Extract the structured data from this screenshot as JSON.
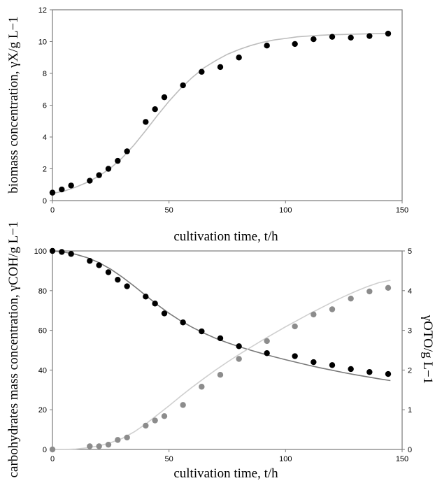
{
  "chart_data": [
    {
      "type": "scatter",
      "title": "",
      "xlabel": "cultivation time, t/h",
      "ylabel": "biomass concentration, γX/g L−1",
      "xlim": [
        0,
        150
      ],
      "ylim": [
        0,
        12
      ],
      "xticks": [
        "0",
        "50",
        "100",
        "150"
      ],
      "yticks": [
        "0",
        "2",
        "4",
        "6",
        "8",
        "10",
        "12"
      ],
      "grid": false,
      "series": [
        {
          "x": [
            0,
            4,
            8,
            16,
            20,
            24,
            28,
            32,
            40,
            44,
            48,
            56,
            64,
            72,
            80,
            92,
            104,
            112,
            120,
            128,
            136,
            144
          ],
          "values": [
            0.5,
            0.7,
            0.95,
            1.25,
            1.6,
            2.0,
            2.5,
            3.1,
            4.95,
            5.75,
            6.5,
            7.25,
            8.1,
            8.4,
            9.0,
            9.75,
            9.85,
            10.15,
            10.3,
            10.25,
            10.35,
            10.5
          ],
          "color": "#000000"
        }
      ],
      "fit_curves": [
        {
          "x": [
            0,
            5,
            10,
            15,
            20,
            25,
            30,
            35,
            40,
            45,
            50,
            55,
            60,
            65,
            70,
            75,
            80,
            85,
            90,
            95,
            100,
            105,
            110,
            115,
            120,
            125,
            130,
            135,
            140,
            145
          ],
          "values": [
            0.45,
            0.6,
            0.85,
            1.15,
            1.55,
            2.05,
            2.7,
            3.5,
            4.4,
            5.35,
            6.25,
            7.05,
            7.75,
            8.35,
            8.8,
            9.2,
            9.5,
            9.75,
            9.95,
            10.1,
            10.2,
            10.3,
            10.35,
            10.4,
            10.43,
            10.45,
            10.47,
            10.49,
            10.5,
            10.52
          ],
          "color": "#bdbdbd"
        }
      ]
    },
    {
      "type": "scatter",
      "title": "",
      "xlabel": "cultivation time, t/h",
      "ylabel": "carbohydrates mass concentration, γCOH/g L−1",
      "y2label": "γOTO/g L−1",
      "xlim": [
        0,
        150
      ],
      "ylim": [
        0,
        100
      ],
      "y2lim": [
        0,
        5
      ],
      "xticks": [
        "0",
        "50",
        "100",
        "150"
      ],
      "yticks": [
        "0",
        "20",
        "40",
        "60",
        "80",
        "100"
      ],
      "y2ticks": [
        "0",
        "1",
        "2",
        "3",
        "4",
        "5"
      ],
      "grid": false,
      "series": [
        {
          "axis": "left",
          "x": [
            0,
            4,
            8,
            16,
            20,
            24,
            28,
            32,
            40,
            44,
            48,
            56,
            64,
            72,
            80,
            92,
            104,
            112,
            120,
            128,
            136,
            144
          ],
          "values": [
            100,
            99.5,
            98.5,
            95,
            92.8,
            89.3,
            85.5,
            82.2,
            77,
            73.5,
            68.5,
            64,
            59.5,
            56,
            52,
            48.5,
            47,
            44,
            42.5,
            40.5,
            39,
            38
          ],
          "color": "#000000"
        },
        {
          "axis": "right",
          "x": [
            0,
            16,
            20,
            24,
            28,
            32,
            40,
            44,
            48,
            56,
            64,
            72,
            80,
            92,
            104,
            112,
            120,
            128,
            136,
            144
          ],
          "values": [
            0,
            0.08,
            0.08,
            0.12,
            0.24,
            0.3,
            0.6,
            0.73,
            0.84,
            1.12,
            1.58,
            1.88,
            2.28,
            2.73,
            3.1,
            3.4,
            3.53,
            3.8,
            3.98,
            4.07
          ],
          "color": "#8c8c8c"
        }
      ],
      "fit_curves": [
        {
          "axis": "left",
          "x": [
            0,
            5,
            10,
            15,
            20,
            25,
            30,
            35,
            40,
            45,
            50,
            55,
            60,
            65,
            70,
            75,
            80,
            85,
            90,
            95,
            100,
            105,
            110,
            115,
            120,
            125,
            130,
            135,
            140,
            145
          ],
          "values": [
            100,
            99.4,
            98.3,
            96.6,
            94.1,
            90.8,
            86.8,
            82.3,
            77.6,
            72.9,
            68.6,
            64.8,
            61.5,
            58.6,
            56,
            53.8,
            51.8,
            50,
            48.3,
            46.7,
            45.2,
            43.8,
            42.4,
            41.1,
            39.9,
            38.7,
            37.6,
            36.6,
            35.6,
            34.7
          ],
          "color": "#7a7a7a"
        },
        {
          "axis": "right",
          "x": [
            0,
            5,
            10,
            15,
            20,
            25,
            30,
            35,
            40,
            45,
            50,
            55,
            60,
            65,
            70,
            75,
            80,
            85,
            90,
            95,
            100,
            105,
            110,
            115,
            120,
            125,
            130,
            135,
            140,
            145
          ],
          "values": [
            0,
            0,
            0.01,
            0.04,
            0.09,
            0.17,
            0.28,
            0.44,
            0.64,
            0.87,
            1.1,
            1.34,
            1.57,
            1.79,
            2.0,
            2.2,
            2.39,
            2.57,
            2.75,
            2.92,
            3.09,
            3.25,
            3.41,
            3.56,
            3.71,
            3.85,
            3.98,
            4.1,
            4.2,
            4.26
          ],
          "color": "#cfcfcf"
        }
      ]
    }
  ]
}
